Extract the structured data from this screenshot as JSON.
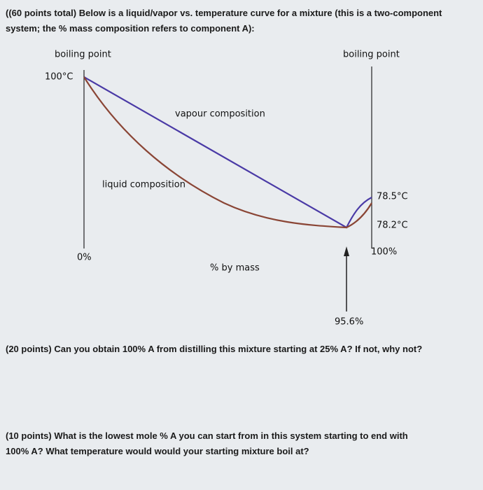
{
  "question1": "((60 points total) Below is a liquid/vapor vs. temperature curve for a mixture (this is a two-component system; the % mass composition refers to component A):",
  "diagram": {
    "left_axis_label": "boiling point",
    "right_axis_label": "boiling point",
    "left_temp": "100°C",
    "right_temp_top": "78.5°C",
    "right_temp_bottom": "78.2°C",
    "x_left": "0%",
    "x_right": "100%",
    "x_label": "% by mass",
    "vapour_label": "vapour composition",
    "liquid_label": "liquid composition",
    "azeotrope": "95.6%"
  },
  "question2": "(20 points) Can you obtain 100% A from distilling this mixture starting at 25% A? If not, why not?",
  "question3": "(10 points) What is the lowest mole % A you can start from in this system starting to end with 100% A? What temperature would would your starting mixture boil at?"
}
